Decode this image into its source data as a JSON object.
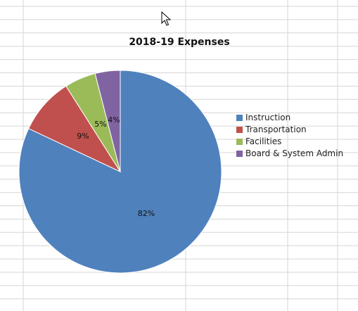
{
  "colors": {
    "grid": "#d6d6d6",
    "instruction": "#4f81bd",
    "transportation": "#c0504d",
    "facilities": "#9bbb59",
    "admin": "#8064a2"
  },
  "chart_data": {
    "type": "pie",
    "title": "2018-19 Expenses",
    "legend_position": "right",
    "slices": [
      {
        "name": "Instruction",
        "value": 82,
        "label": "82%"
      },
      {
        "name": "Transportation",
        "value": 9,
        "label": "9%"
      },
      {
        "name": "Facilities",
        "value": 5,
        "label": "5%"
      },
      {
        "name": "Board & System Admin",
        "value": 4,
        "label": "4%"
      }
    ]
  },
  "cursor_icon": "mouse-pointer-icon"
}
